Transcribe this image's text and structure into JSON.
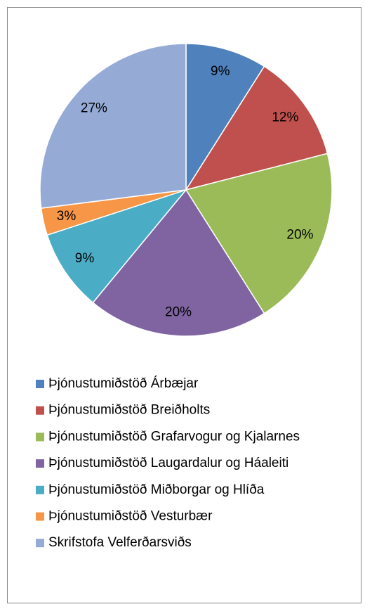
{
  "chart_data": {
    "type": "pie",
    "categories": [
      "Þjónustumiðstöð Árbæjar",
      "Þjónustumiðstöð Breiðholts",
      "Þjónustumiðstöð Grafarvogur og Kjalarnes",
      "Þjónustumiðstöð Laugardalur og Háaleiti",
      "Þjónustumiðstöð Miðborgar og Hlíða",
      "Þjónustumiðstöð Vesturbær",
      "Skrifstofa Velferðarsviðs"
    ],
    "values": [
      9,
      12,
      20,
      20,
      9,
      3,
      27
    ],
    "value_labels": [
      "9%",
      "12%",
      "20%",
      "20%",
      "9%",
      "3%",
      "27%"
    ],
    "colors": [
      "#4F81BD",
      "#C0504D",
      "#9BBB59",
      "#8064A2",
      "#4BACC6",
      "#F79646",
      "#95ABD6"
    ],
    "legend": "bottom"
  }
}
